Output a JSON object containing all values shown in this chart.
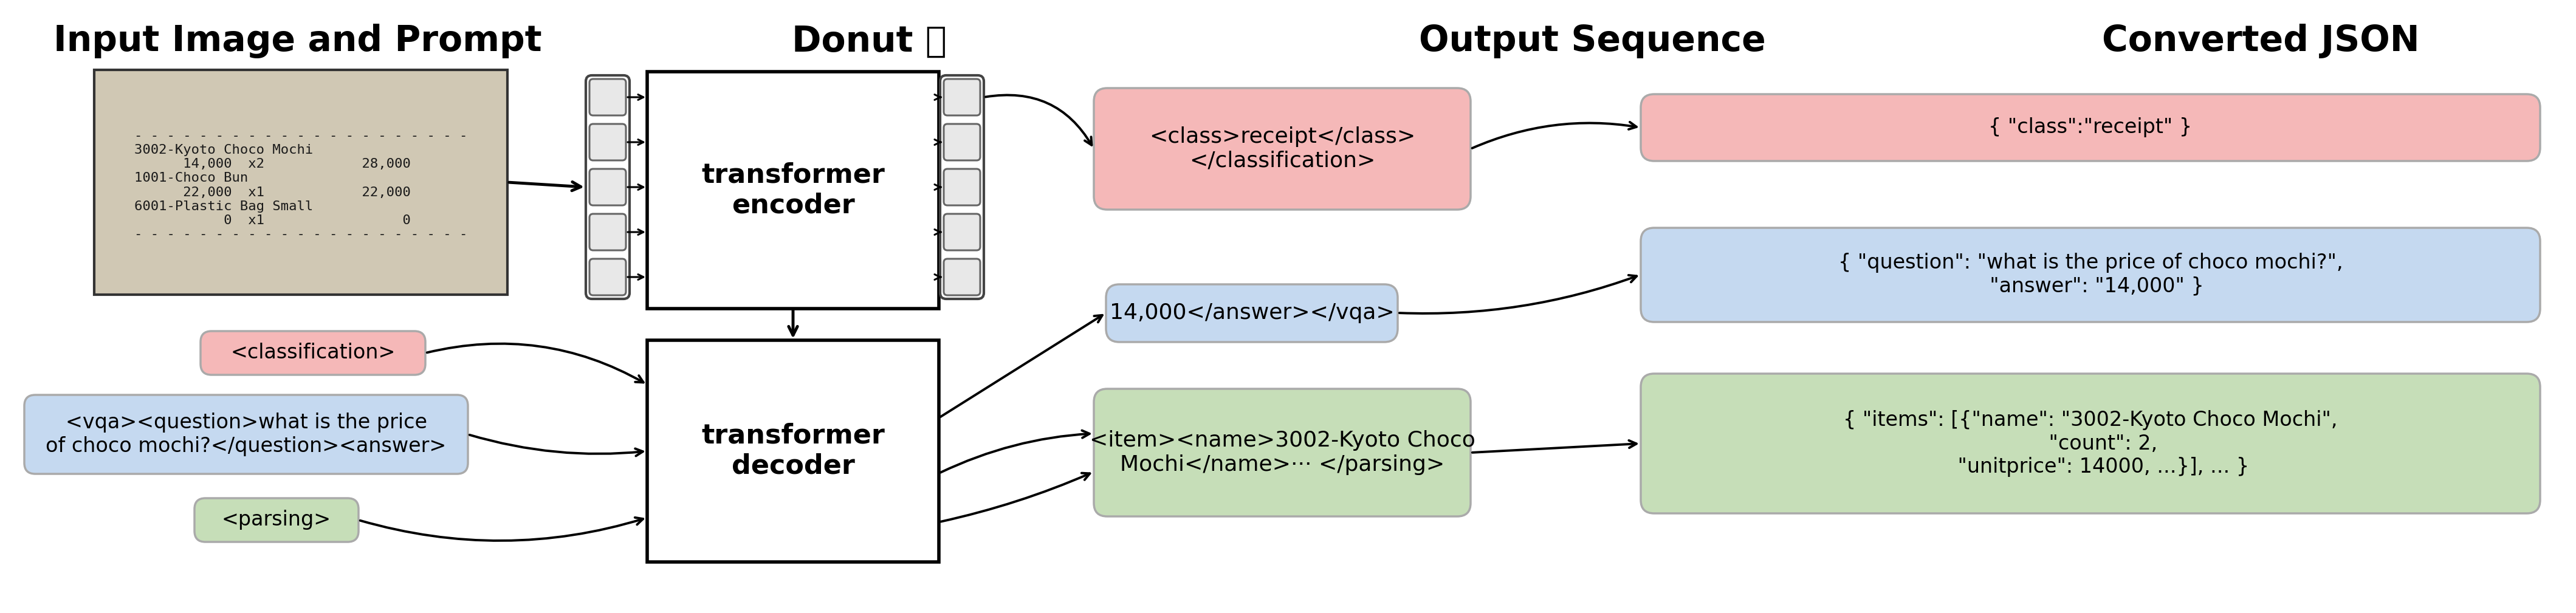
{
  "title_input": "Input Image and Prompt",
  "title_donut": "Donut 🍩",
  "title_output": "Output Sequence",
  "title_json": "Converted JSON",
  "prompt_class_text": "<classification>",
  "prompt_vqa_text": "<vqa><question>what is the price\nof choco mochi?</question><answer>",
  "prompt_parse_text": "<parsing>",
  "encoder_label": "transformer\nencoder",
  "decoder_label": "transformer\ndecoder",
  "out1_text": "<class>receipt</class>\n</classification>",
  "out2_text": "14,000</answer></vqa>",
  "out3_text": "<item><name>3002-Kyoto Choco\nMochi</name>··· </parsing>",
  "json1_text": "{ \"class\":\"receipt\" }",
  "json2_text": "{ \"question\": \"what is the price of choco mochi?\",\n  \"answer\": \"14,000\" }",
  "json3_text": "{ \"items\": [{\"name\": \"3002-Kyoto Choco Mochi\",\n    \"count\": 2,\n    \"unitprice\": 14000, ...}], ... }",
  "receipt_text": "- - - - - - - - - - - - - - - - - - - - -\n3002-Kyoto Choco Mochi\n      14,000  x2            28,000\n1001-Choco Bun\n      22,000  x1            22,000\n6001-Plastic Bag Small\n           0  x1                 0\n- - - - - - - - - - - - - - - - - - - - -",
  "color_pink": "#F5B8B8",
  "color_blue": "#C5D9F0",
  "color_green": "#C6DEB8",
  "color_receipt_bg": "#D0C8B4",
  "bg_color": "#ffffff"
}
